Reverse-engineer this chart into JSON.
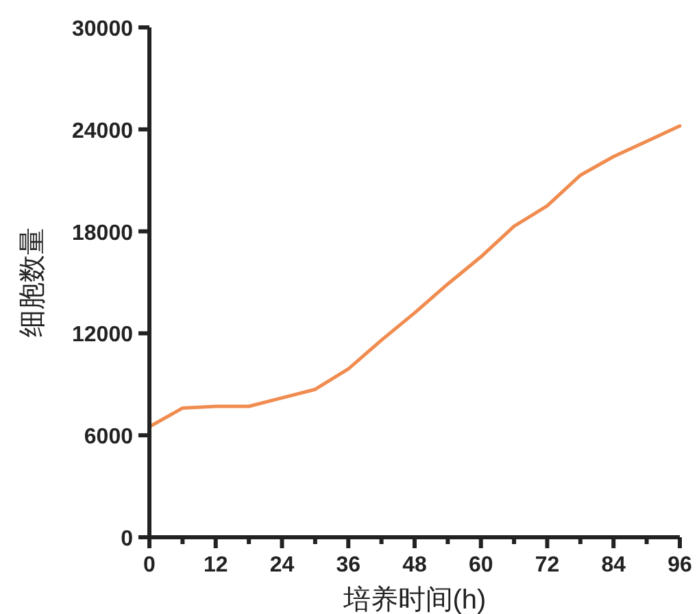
{
  "chart_data": {
    "type": "line",
    "xlabel": "培养时间(h)",
    "ylabel": "细胞数量",
    "x": [
      0,
      6,
      12,
      18,
      24,
      30,
      36,
      42,
      48,
      54,
      60,
      66,
      72,
      78,
      84,
      90,
      96
    ],
    "series": [
      {
        "color": "#f08c4f",
        "values": [
          6500,
          7600,
          7700,
          7700,
          8200,
          8700,
          9900,
          11600,
          13200,
          14900,
          16500,
          18300,
          19500,
          21300,
          22400,
          23300,
          24200
        ]
      }
    ],
    "xlim": [
      0,
      96
    ],
    "xticks": [
      0,
      {
        "value": 6,
        "label": null
      },
      12,
      {
        "value": 18,
        "label": null
      },
      24,
      {
        "value": 30,
        "label": null
      },
      36,
      {
        "value": 42,
        "label": null
      },
      48,
      {
        "value": 54,
        "label": null
      },
      60,
      {
        "value": 66,
        "label": null
      },
      72,
      {
        "value": 78,
        "label": null
      },
      84,
      {
        "value": 90,
        "label": null
      },
      96
    ],
    "ylim": [
      0,
      30000
    ],
    "yticks": [
      0,
      6000,
      12000,
      18000,
      24000,
      30000
    ],
    "grid": false,
    "marker": "none",
    "line_style": "solid"
  }
}
